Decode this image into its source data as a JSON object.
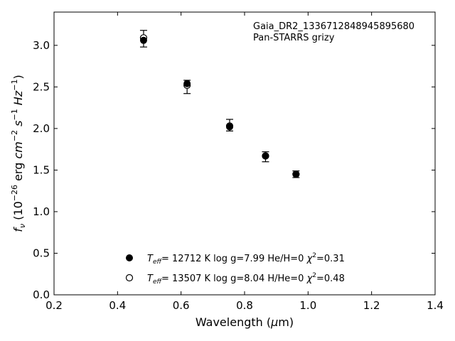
{
  "chart_data": {
    "type": "scatter",
    "xlabel": "Wavelength (μm)",
    "ylabel": "f_ν (10^-26 erg cm^-2 s^-1 Hz^-1)",
    "xlim": [
      0.2,
      1.4
    ],
    "ylim": [
      0.0,
      3.4
    ],
    "x_ticks": [
      0.2,
      0.4,
      0.6,
      0.8,
      1.0,
      1.2,
      1.4
    ],
    "y_ticks": [
      0.0,
      0.5,
      1.0,
      1.5,
      2.0,
      2.5,
      3.0
    ],
    "grid": false,
    "legend_position": "lower-left",
    "annotations": [
      "Gaia_DR2_1336712848945895680",
      "Pan-STARRS grizy"
    ],
    "observed": {
      "x": [
        0.482,
        0.619,
        0.753,
        0.866,
        0.962
      ],
      "y": [
        3.08,
        2.5,
        2.04,
        1.66,
        1.45
      ],
      "yerr": [
        0.1,
        0.08,
        0.07,
        0.06,
        0.04
      ]
    },
    "series": [
      {
        "marker": "filled",
        "legend_label": "T_eff= 12712 K  log g=7.99  He/H=0  χ²=0.31",
        "x": [
          0.482,
          0.619,
          0.753,
          0.866,
          0.962
        ],
        "y": [
          3.06,
          2.54,
          2.02,
          1.67,
          1.45
        ]
      },
      {
        "marker": "open",
        "legend_label": "T_eff= 13507 K  log g=8.04  H/He=0  χ²=0.48",
        "x": [
          0.482,
          0.619,
          0.753,
          0.866,
          0.962
        ],
        "y": [
          3.09,
          2.52,
          2.03,
          1.67,
          1.45
        ]
      }
    ]
  }
}
